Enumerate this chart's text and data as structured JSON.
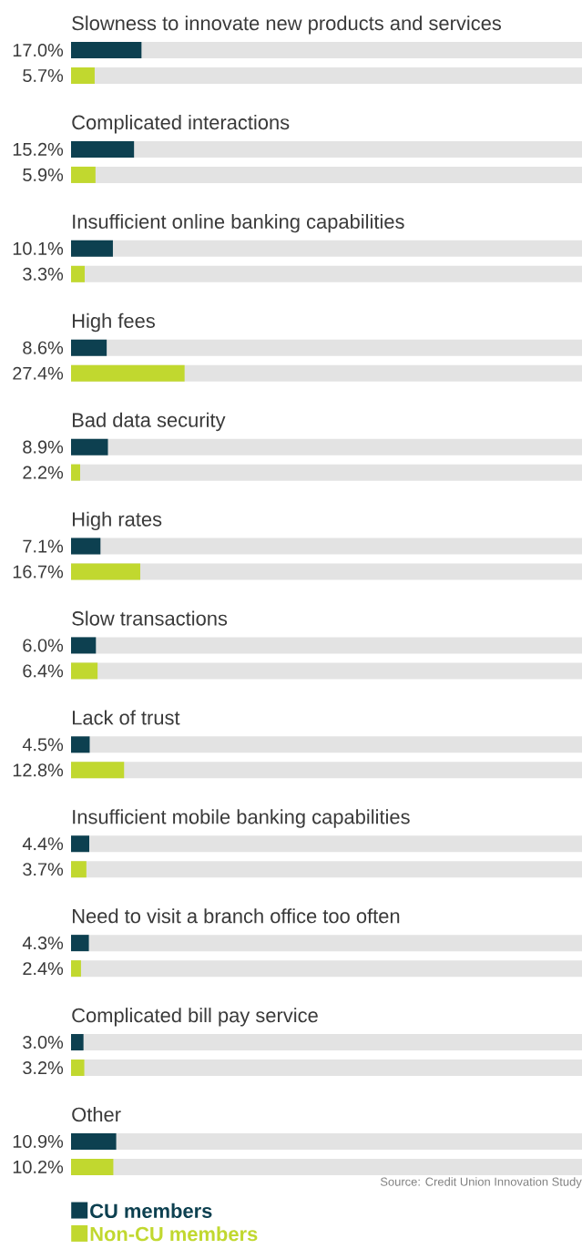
{
  "chart_data": {
    "type": "bar",
    "orientation": "horizontal",
    "legend": "bottom",
    "categories": [
      "Slowness to innovate new products and services",
      "Complicated interactions",
      "Insufficient online banking capabilities",
      "High fees",
      "Bad data security",
      "High rates",
      "Slow transactions",
      "Lack of trust",
      "Insufficient mobile banking capabilities",
      "Need to visit a branch office too often",
      "Complicated bill pay service",
      "Other"
    ],
    "series": [
      {
        "name": "CU members",
        "color": "#0d4050",
        "values": [
          17.0,
          15.2,
          10.1,
          8.6,
          8.9,
          7.1,
          6.0,
          4.5,
          4.4,
          4.3,
          3.0,
          10.9
        ],
        "value_labels": [
          "17.0%",
          "15.2%",
          "10.1%",
          "8.6%",
          "8.9%",
          "7.1%",
          "6.0%",
          "4.5%",
          "4.4%",
          "4.3%",
          "3.0%",
          "10.9%"
        ]
      },
      {
        "name": "Non-CU members",
        "color": "#c1d82f",
        "values": [
          5.7,
          5.9,
          3.3,
          27.4,
          2.2,
          16.7,
          6.4,
          12.8,
          3.7,
          2.4,
          3.2,
          10.2
        ],
        "value_labels": [
          "5.7%",
          "5.9%",
          "3.3%",
          "27.4%",
          "2.2%",
          "16.7%",
          "6.4%",
          "12.8%",
          "3.7%",
          "2.4%",
          "3.2%",
          "10.2%"
        ]
      }
    ],
    "annotations": [
      "Source: Credit Union Innovation Study"
    ]
  }
}
